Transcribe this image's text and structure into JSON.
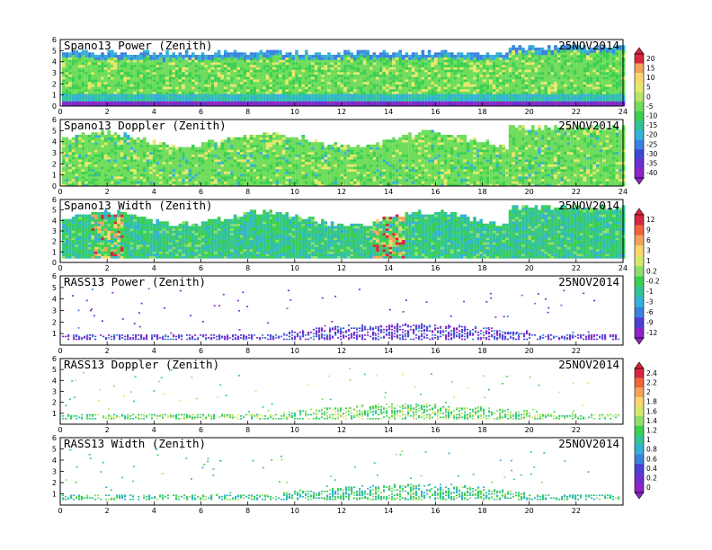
{
  "chart_data": [
    {
      "type": "heatmap",
      "title": "Spano13 Power (Zenith)",
      "date": "25NOV2014",
      "xlim": [
        0,
        24
      ],
      "ylim": [
        0,
        6
      ],
      "x_ticks": [
        "0",
        "2",
        "4",
        "6",
        "8",
        "10",
        "12",
        "14",
        "16",
        "18",
        "20",
        "22",
        "24"
      ],
      "y_ticks": [
        "0",
        "1",
        "2",
        "3",
        "4",
        "5",
        "6"
      ],
      "colorbar": "power"
    },
    {
      "type": "heatmap",
      "title": "Spano13 Doppler (Zenith)",
      "date": "25NOV2014",
      "xlim": [
        0,
        24
      ],
      "ylim": [
        0,
        6
      ],
      "x_ticks": [
        "0",
        "2",
        "4",
        "6",
        "8",
        "10",
        "12",
        "14",
        "16",
        "18",
        "20",
        "22",
        "24"
      ],
      "y_ticks": [
        "0",
        "1",
        "2",
        "3",
        "4",
        "5",
        "6"
      ]
    },
    {
      "type": "heatmap",
      "title": "Spano13 Width (Zenith)",
      "date": "25NOV2014",
      "xlim": [
        0,
        24
      ],
      "ylim": [
        0,
        6
      ],
      "x_ticks": [
        "0",
        "2",
        "4",
        "6",
        "8",
        "10",
        "12",
        "14",
        "16",
        "18",
        "20",
        "22",
        "24"
      ],
      "y_ticks": [
        "0",
        "1",
        "2",
        "3",
        "4",
        "5",
        "6"
      ],
      "colorbar": "spano_width"
    },
    {
      "type": "heatmap",
      "title": "RASS13 Power (Zenith)",
      "date": "25NOV2014",
      "xlim": [
        0,
        24
      ],
      "ylim": [
        0,
        6
      ],
      "x_ticks": [
        "0",
        "2",
        "4",
        "6",
        "8",
        "10",
        "12",
        "14",
        "16",
        "18",
        "20",
        "22"
      ],
      "y_ticks": [
        "1",
        "2",
        "3",
        "4",
        "5",
        "6"
      ]
    },
    {
      "type": "heatmap",
      "title": "RASS13 Doppler (Zenith)",
      "date": "25NOV2014",
      "xlim": [
        0,
        24
      ],
      "ylim": [
        0,
        6
      ],
      "x_ticks": [
        "0",
        "2",
        "4",
        "6",
        "8",
        "10",
        "12",
        "14",
        "16",
        "18",
        "20",
        "22"
      ],
      "y_ticks": [
        "1",
        "2",
        "3",
        "4",
        "5",
        "6"
      ],
      "colorbar": "rass"
    },
    {
      "type": "heatmap",
      "title": "RASS13 Width (Zenith)",
      "date": "25NOV2014",
      "xlim": [
        0,
        24
      ],
      "ylim": [
        0,
        6
      ],
      "x_ticks": [
        "0",
        "2",
        "4",
        "6",
        "8",
        "10",
        "12",
        "14",
        "16",
        "18",
        "20",
        "22"
      ],
      "y_ticks": [
        "1",
        "2",
        "3",
        "4",
        "5",
        "6"
      ]
    }
  ],
  "colorbars": {
    "power": {
      "labels": [
        "20",
        "15",
        "10",
        "5",
        "0",
        "-5",
        "-10",
        "-15",
        "-20",
        "-25",
        "-30",
        "-35",
        "-40"
      ],
      "colors": [
        "#d7263d",
        "#f4a259",
        "#f9d56e",
        "#e6e86b",
        "#b7e36a",
        "#6fdc5a",
        "#3ccf52",
        "#31c49a",
        "#35b0d8",
        "#3b82e0",
        "#3f48d6",
        "#6b2fd1",
        "#8e24c7"
      ]
    },
    "spano_width": {
      "labels": [
        "12",
        "9",
        "6",
        "3",
        "1",
        "0.2",
        "-0.2",
        "-1",
        "-3",
        "-6",
        "-9",
        "-12"
      ],
      "colors": [
        "#d7263d",
        "#f0643a",
        "#f4a259",
        "#f9d56e",
        "#d8e86b",
        "#8fe06a",
        "#3ccf52",
        "#31c49a",
        "#35b0d8",
        "#3b82e0",
        "#4b3fd6",
        "#8e24c7"
      ]
    },
    "rass": {
      "labels": [
        "2.4",
        "2.2",
        "2",
        "1.8",
        "1.6",
        "1.4",
        "1.2",
        "1",
        "0.8",
        "0.6",
        "0.4",
        "0.2",
        "0"
      ],
      "colors": [
        "#d7263d",
        "#f0643a",
        "#f4a259",
        "#f9d56e",
        "#d8e86b",
        "#8fe06a",
        "#3ccf52",
        "#31c49a",
        "#35b0d8",
        "#3b82e0",
        "#4b3fd6",
        "#6b2fd1",
        "#8e24c7"
      ]
    }
  }
}
